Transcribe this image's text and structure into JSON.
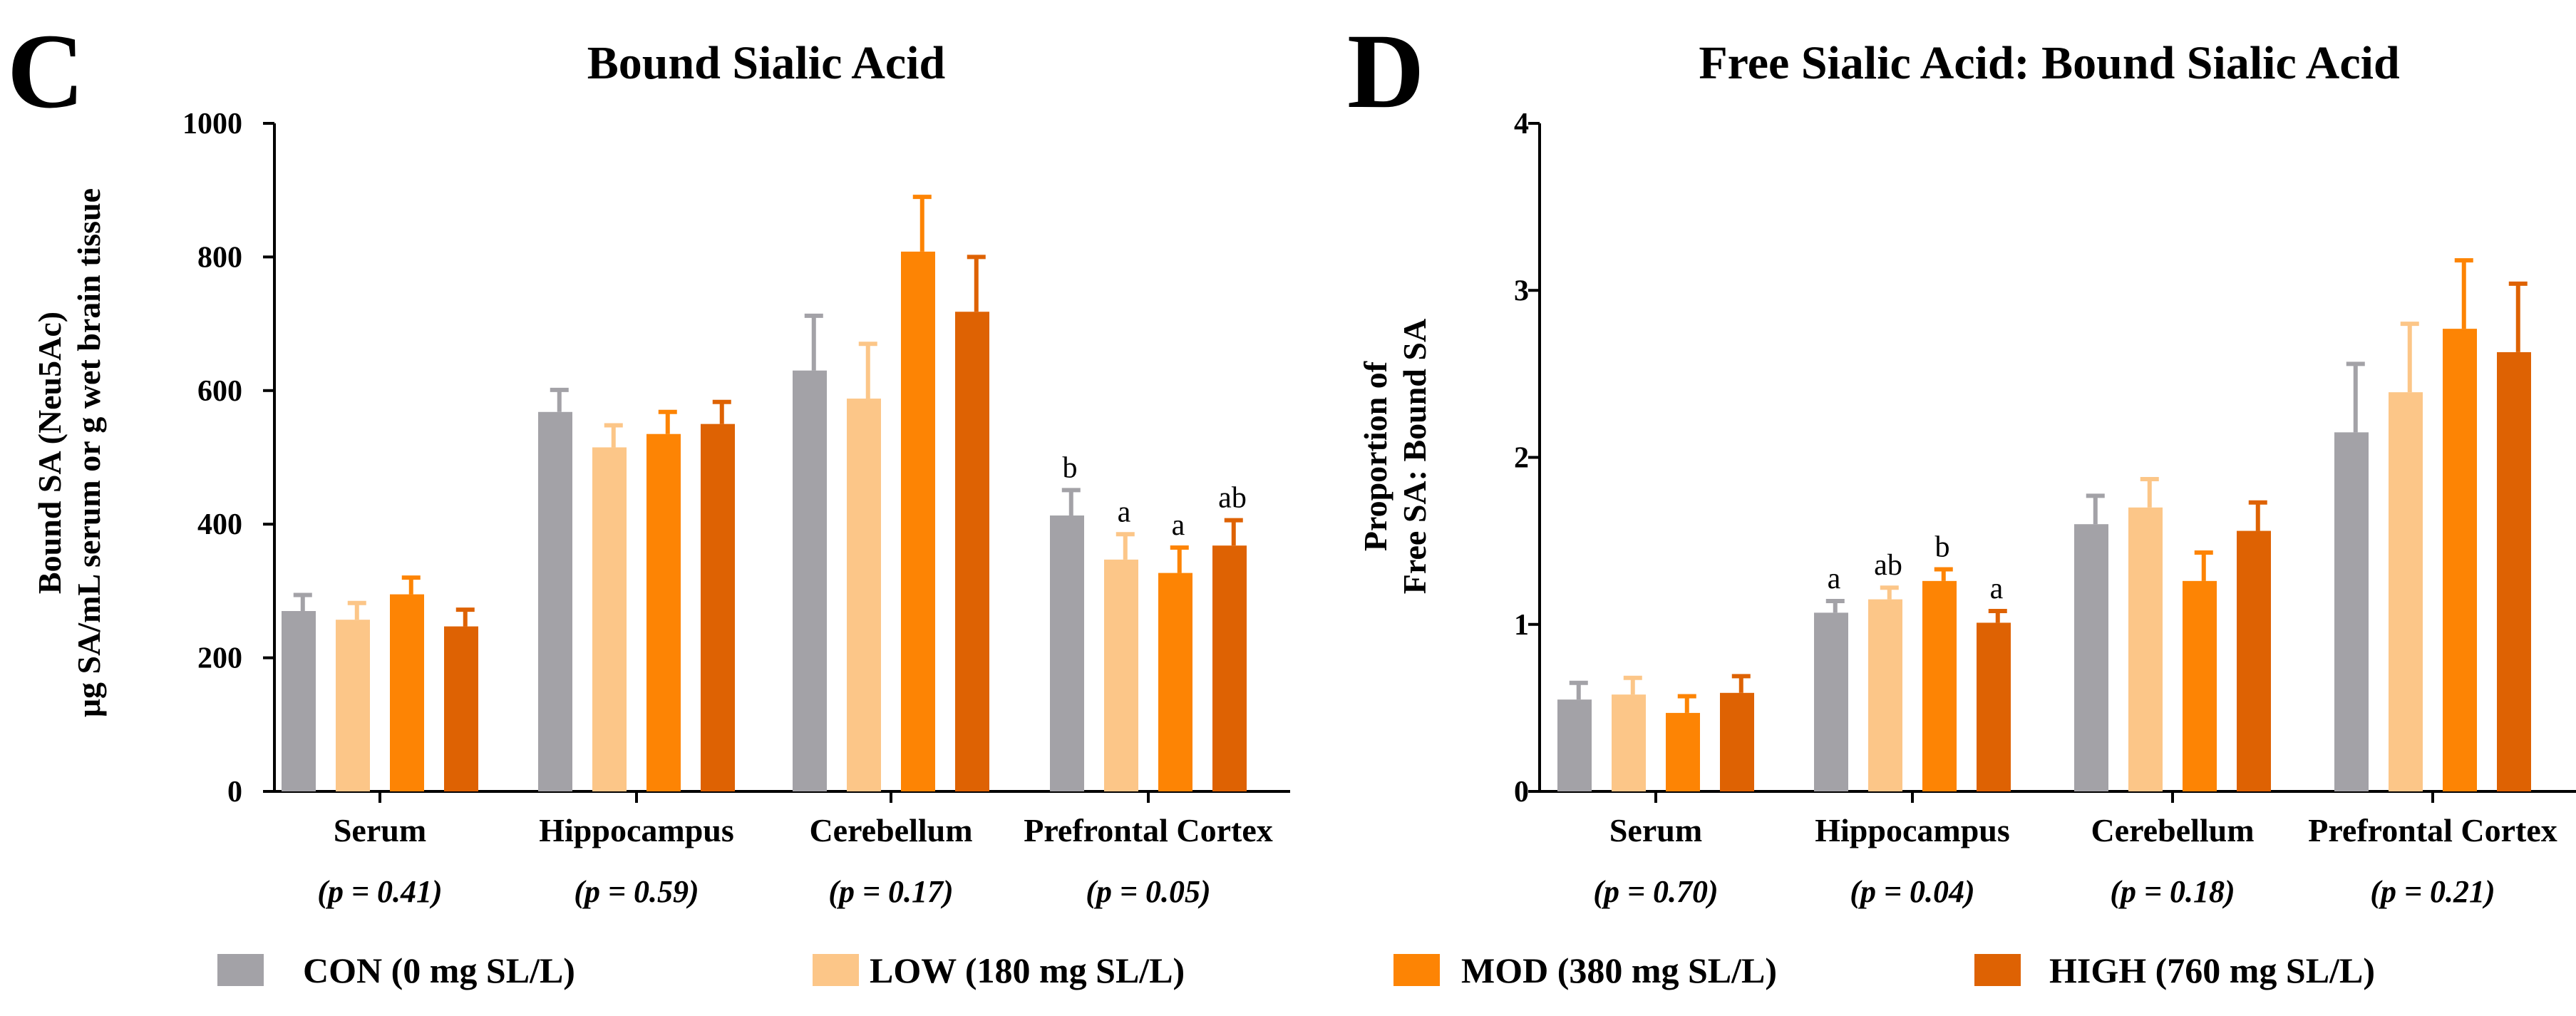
{
  "legend": [
    {
      "label": "CON (0 mg SL/L)",
      "color": "#a3a2a7"
    },
    {
      "label": "LOW (180 mg SL/L)",
      "color": "#fcc688"
    },
    {
      "label": "MOD (380 mg SL/L)",
      "color": "#fd8404"
    },
    {
      "label": "HIGH (760 mg SL/L)",
      "color": "#de6203"
    }
  ],
  "chart_data": [
    {
      "type": "bar",
      "panel": "C",
      "title": "Bound Sialic Acid",
      "ylabel_lines": [
        "Bound SA (Neu5Ac)",
        "μg SA/mL serum or g wet brain tissue"
      ],
      "xlabel": "",
      "ylim": [
        0,
        1000
      ],
      "yticks": [
        0,
        200,
        400,
        600,
        800,
        1000
      ],
      "categories": [
        "Serum",
        "Hippocampus",
        "Cerebellum",
        "Prefrontal Cortex"
      ],
      "pvalues": [
        "(p = 0.41)",
        "(p = 0.59)",
        "(p = 0.17)",
        "(p = 0.05)"
      ],
      "series": [
        {
          "name": "CON (0 mg SL/L)",
          "values": [
            270,
            568,
            630,
            413
          ],
          "errors": [
            24,
            33,
            82,
            38
          ],
          "labels": [
            "",
            "",
            "",
            "b"
          ]
        },
        {
          "name": "LOW (180 mg SL/L)",
          "values": [
            257,
            515,
            588,
            347
          ],
          "errors": [
            25,
            33,
            82,
            38
          ],
          "labels": [
            "",
            "",
            "",
            "a"
          ]
        },
        {
          "name": "MOD (380 mg SL/L)",
          "values": [
            295,
            535,
            808,
            327
          ],
          "errors": [
            25,
            33,
            82,
            38
          ],
          "labels": [
            "",
            "",
            "",
            "a"
          ]
        },
        {
          "name": "HIGH (760 mg SL/L)",
          "values": [
            247,
            550,
            718,
            368
          ],
          "errors": [
            25,
            33,
            82,
            38
          ],
          "labels": [
            "",
            "",
            "",
            "ab"
          ]
        }
      ]
    },
    {
      "type": "bar",
      "panel": "D",
      "title": "Free Sialic Acid: Bound Sialic Acid",
      "ylabel_lines": [
        "Proportion of",
        "Free SA: Bound SA"
      ],
      "xlabel": "",
      "ylim": [
        0,
        4
      ],
      "yticks": [
        0,
        1,
        2,
        3,
        4
      ],
      "categories": [
        "Serum",
        "Hippocampus",
        "Cerebellum",
        "Prefrontal Cortex"
      ],
      "pvalues": [
        "(p = 0.70)",
        "(p = 0.04)",
        "(p = 0.18)",
        "(p = 0.21)"
      ],
      "series": [
        {
          "name": "CON (0 mg SL/L)",
          "values": [
            0.55,
            1.07,
            1.6,
            2.15
          ],
          "errors": [
            0.1,
            0.07,
            0.17,
            0.41
          ],
          "labels": [
            "",
            "a",
            "",
            ""
          ]
        },
        {
          "name": "LOW (180 mg SL/L)",
          "values": [
            0.58,
            1.15,
            1.7,
            2.39
          ],
          "errors": [
            0.1,
            0.07,
            0.17,
            0.41
          ],
          "labels": [
            "",
            "ab",
            "",
            ""
          ]
        },
        {
          "name": "MOD (380 mg SL/L)",
          "values": [
            0.47,
            1.26,
            1.26,
            2.77
          ],
          "errors": [
            0.1,
            0.07,
            0.17,
            0.41
          ],
          "labels": [
            "",
            "b",
            "",
            ""
          ]
        },
        {
          "name": "HIGH (760 mg SL/L)",
          "values": [
            0.59,
            1.01,
            1.56,
            2.63
          ],
          "errors": [
            0.1,
            0.07,
            0.17,
            0.41
          ],
          "labels": [
            "",
            "a",
            "",
            ""
          ]
        }
      ]
    }
  ]
}
